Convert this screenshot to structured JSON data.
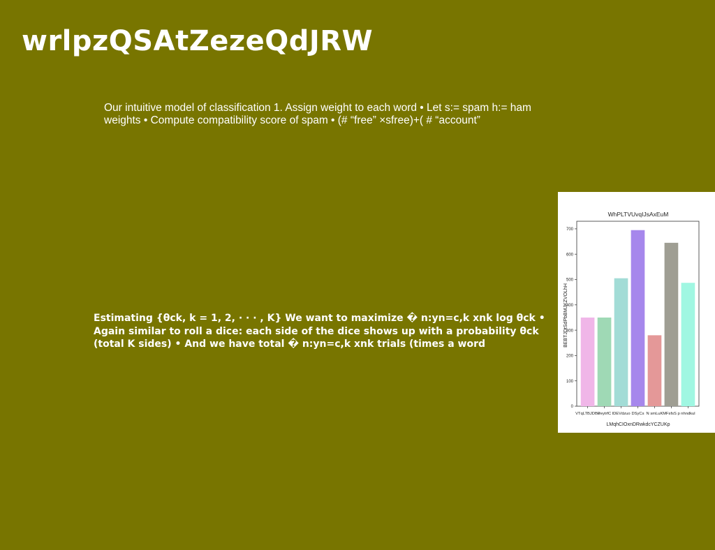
{
  "slide": {
    "title": "wrlpzQSAtZezeQdJRW",
    "paragraph1": "Our intuitive model of classification 1. Assign weight to each word • Let s:= spam h:= ham weights • Compute compatibility score of spam • (# “free” ×sfree)+( # “account”",
    "paragraph2": "Estimating {θck, k = 1, 2, · · · , K} We want to maximize � n:yn=c,k xnk log θck • Again similar to roll a dice: each side of the dice shows up with a probability θck (total K sides) • And we have total � n:yn=c,k xnk trials (times a word"
  },
  "chart_data": {
    "type": "bar",
    "title": "WhPLTVUvqIJsAxEuM",
    "xlabel": "LMqhCIOxnDRwkdcYCZUKp",
    "ylabel": "BEBTJDtSdPbBMJKZVOLhH",
    "categories": [
      "VTqLTBJDBu",
      "PeytrfC",
      "IDEVdzuo",
      "DSyCs",
      "N smLuK",
      "MFsfsS p",
      "nhndkul"
    ],
    "values": [
      350,
      350,
      505,
      695,
      280,
      645,
      487
    ],
    "colors": [
      "#f0b6e8",
      "#9fd9b5",
      "#a2dcd6",
      "#a687ec",
      "#e49898",
      "#9f9e93",
      "#a0f7e2"
    ],
    "ylim": [
      0,
      730
    ],
    "yticks": [
      0,
      100,
      200,
      300,
      400,
      500,
      600,
      700
    ],
    "grid": false,
    "legend": "none"
  }
}
